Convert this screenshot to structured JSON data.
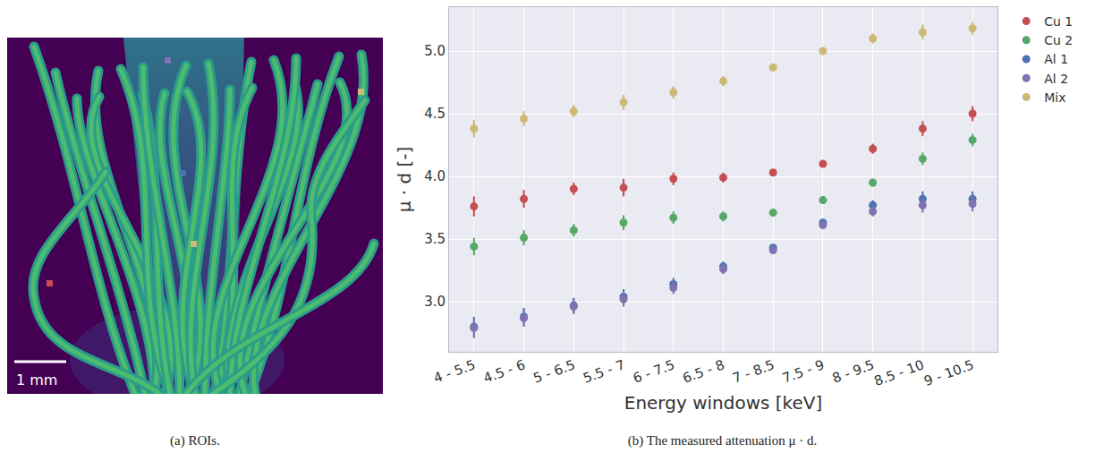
{
  "image_panel": {
    "caption": "(a) ROIs.",
    "scale_bar": "1 mm"
  },
  "chart_data": {
    "type": "scatter",
    "caption": "(b) The measured attenuation μ · d.",
    "x_label": "Energy windows [keV]",
    "y_label": "μ · d [-]",
    "categories": [
      "4 - 5.5",
      "4.5 - 6",
      "5 - 6.5",
      "5.5 - 7",
      "6 - 7.5",
      "6.5 - 8",
      "7 - 8.5",
      "7.5 - 9",
      "8 - 9.5",
      "8.5 - 10",
      "9 - 10.5"
    ],
    "ylim": [
      2.6,
      5.35
    ],
    "yticks": [
      {
        "value": 3,
        "label": "3.0"
      },
      {
        "value": 3.5,
        "label": "3.5"
      },
      {
        "value": 4,
        "label": "4.0"
      },
      {
        "value": 4.5,
        "label": "4.5"
      },
      {
        "value": 5,
        "label": "5.0"
      }
    ],
    "grid": true,
    "legend": "outside right",
    "marker": "circle",
    "series": [
      {
        "name": "Cu 1",
        "color": "#c44e52",
        "values": [
          3.76,
          3.82,
          3.9,
          3.91,
          3.98,
          3.99,
          4.03,
          4.1,
          4.22,
          4.38,
          4.5
        ],
        "errors": [
          0.08,
          0.07,
          0.05,
          0.07,
          0.05,
          0.04,
          0.02,
          0.02,
          0.04,
          0.06,
          0.06
        ]
      },
      {
        "name": "Cu 2",
        "color": "#55a868",
        "values": [
          3.44,
          3.51,
          3.57,
          3.63,
          3.67,
          3.68,
          3.71,
          3.81,
          3.95,
          4.14,
          4.29
        ],
        "errors": [
          0.07,
          0.06,
          0.05,
          0.06,
          0.05,
          0.04,
          0.02,
          0.02,
          0.03,
          0.05,
          0.05
        ]
      },
      {
        "name": "Al 1",
        "color": "#4c72b0",
        "values": [
          2.8,
          2.88,
          2.97,
          3.04,
          3.14,
          3.28,
          3.43,
          3.63,
          3.77,
          3.82,
          3.82
        ],
        "errors": [
          0.08,
          0.07,
          0.06,
          0.06,
          0.05,
          0.04,
          0.02,
          0.02,
          0.04,
          0.06,
          0.06
        ]
      },
      {
        "name": "Al 2",
        "color": "#8172b2",
        "values": [
          2.79,
          2.87,
          2.96,
          3.02,
          3.11,
          3.26,
          3.41,
          3.61,
          3.72,
          3.77,
          3.78
        ],
        "errors": [
          0.08,
          0.07,
          0.06,
          0.06,
          0.05,
          0.04,
          0.02,
          0.02,
          0.04,
          0.06,
          0.06
        ]
      },
      {
        "name": "Mix",
        "color": "#ccb974",
        "values": [
          4.38,
          4.46,
          4.52,
          4.59,
          4.67,
          4.76,
          4.87,
          5.0,
          5.1,
          5.15,
          5.18
        ],
        "errors": [
          0.07,
          0.06,
          0.05,
          0.06,
          0.05,
          0.04,
          0.02,
          0.02,
          0.04,
          0.06,
          0.05
        ]
      }
    ]
  }
}
